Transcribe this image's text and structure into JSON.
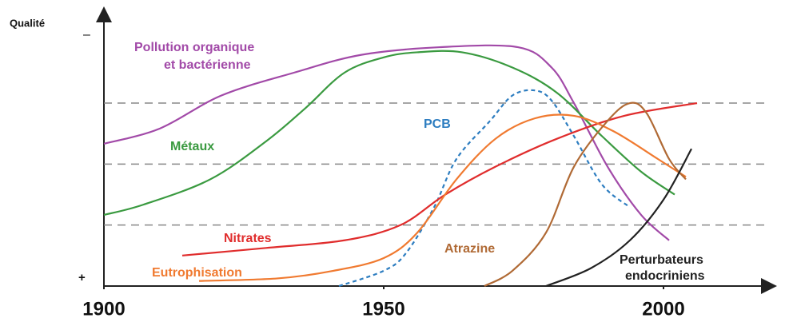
{
  "chart_data": {
    "type": "line",
    "y_label": "Qualité",
    "y_top_label": "–",
    "y_bottom_label": "+",
    "xlim": [
      1900,
      2019
    ],
    "ylim": [
      0,
      100
    ],
    "xticks": [
      1900,
      1950,
      2000
    ],
    "hlines": [
      24,
      48,
      72
    ],
    "series": [
      {
        "name": "Pollution organique\net bactérienne",
        "color": "#a24aa8",
        "dashed": false,
        "x": [
          1900,
          1910,
          1921,
          1934,
          1946,
          1960,
          1974,
          1980,
          1984,
          1990,
          1996,
          2001
        ],
        "values": [
          56,
          62,
          75,
          84,
          91,
          94,
          94,
          86,
          72,
          47,
          28,
          18
        ]
      },
      {
        "name": "Métaux",
        "color": "#3a9a40",
        "dashed": false,
        "x": [
          1900,
          1907,
          1919,
          1929,
          1936,
          1943,
          1950,
          1956,
          1964,
          1973,
          1981,
          1989,
          1996,
          2002
        ],
        "values": [
          28,
          32,
          42,
          57,
          70,
          84,
          90,
          92,
          92,
          86,
          76,
          59,
          45,
          36
        ]
      },
      {
        "name": "PCB",
        "color": "#2d7dc0",
        "dashed": true,
        "x": [
          1942,
          1950,
          1954,
          1959,
          1963,
          1969,
          1973,
          1977,
          1980,
          1984,
          1989,
          1994
        ],
        "values": [
          0,
          6,
          13,
          31,
          50,
          65,
          75,
          77,
          73,
          59,
          40,
          31
        ]
      },
      {
        "name": "Nitrates",
        "color": "#e02d2d",
        "dashed": false,
        "x": [
          1914,
          1929,
          1943,
          1953,
          1961,
          1970,
          1981,
          1993,
          2006
        ],
        "values": [
          12,
          15,
          18,
          24,
          36,
          47,
          58,
          67,
          72
        ]
      },
      {
        "name": "Eutrophisation",
        "color": "#f07a30",
        "dashed": false,
        "x": [
          1917,
          1931,
          1941,
          1950,
          1956,
          1963,
          1970,
          1977,
          1984,
          1991,
          1999,
          2004
        ],
        "values": [
          2,
          3,
          6,
          11,
          21,
          42,
          58,
          66,
          67,
          61,
          50,
          43
        ]
      },
      {
        "name": "Atrazine",
        "color": "#b06a35",
        "dashed": false,
        "x": [
          1968,
          1973,
          1979,
          1984,
          1990,
          1994,
          1997,
          2001,
          2004
        ],
        "values": [
          0,
          6,
          21,
          47,
          65,
          72,
          68,
          50,
          42
        ]
      },
      {
        "name": "Perturbateurs\nendocriniens",
        "color": "#222222",
        "dashed": false,
        "x": [
          1979,
          1987,
          1994,
          2000,
          2005
        ],
        "values": [
          0,
          7,
          18,
          34,
          54
        ]
      }
    ]
  }
}
